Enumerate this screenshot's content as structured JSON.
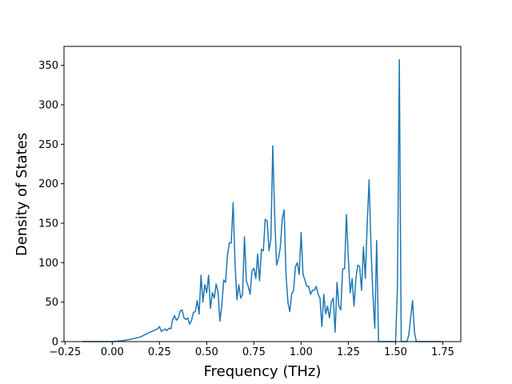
{
  "chart_data": {
    "type": "line",
    "xlabel": "Frequency (THz)",
    "ylabel": "Density of States",
    "x": [
      -0.16,
      0.0,
      0.05,
      0.1,
      0.15,
      0.2,
      0.24,
      0.25,
      0.26,
      0.28,
      0.29,
      0.3,
      0.31,
      0.32,
      0.33,
      0.34,
      0.35,
      0.36,
      0.37,
      0.38,
      0.39,
      0.4,
      0.41,
      0.42,
      0.43,
      0.44,
      0.45,
      0.46,
      0.47,
      0.48,
      0.49,
      0.5,
      0.51,
      0.52,
      0.53,
      0.54,
      0.55,
      0.56,
      0.57,
      0.58,
      0.59,
      0.6,
      0.61,
      0.62,
      0.63,
      0.64,
      0.65,
      0.66,
      0.67,
      0.68,
      0.69,
      0.7,
      0.71,
      0.72,
      0.73,
      0.74,
      0.75,
      0.76,
      0.77,
      0.78,
      0.79,
      0.8,
      0.81,
      0.82,
      0.83,
      0.84,
      0.85,
      0.86,
      0.87,
      0.88,
      0.89,
      0.9,
      0.91,
      0.92,
      0.93,
      0.94,
      0.95,
      0.96,
      0.97,
      0.98,
      0.99,
      1.0,
      1.01,
      1.02,
      1.03,
      1.04,
      1.05,
      1.06,
      1.07,
      1.08,
      1.09,
      1.1,
      1.11,
      1.12,
      1.13,
      1.14,
      1.15,
      1.16,
      1.17,
      1.18,
      1.19,
      1.2,
      1.21,
      1.22,
      1.23,
      1.24,
      1.25,
      1.26,
      1.27,
      1.28,
      1.29,
      1.3,
      1.31,
      1.32,
      1.33,
      1.34,
      1.35,
      1.36,
      1.37,
      1.38,
      1.39,
      1.4,
      1.41,
      1.5,
      1.51,
      1.52,
      1.53,
      1.56,
      1.57,
      1.58,
      1.59,
      1.6,
      1.61,
      1.75
    ],
    "series": [
      {
        "color": "#1f77b4",
        "values": [
          0,
          0,
          1,
          3,
          6,
          12,
          16,
          19,
          13,
          16,
          14,
          17,
          16,
          28,
          33,
          27,
          30,
          39,
          40,
          30,
          28,
          30,
          22,
          27,
          37,
          38,
          52,
          35,
          84,
          50,
          72,
          62,
          84,
          42,
          62,
          55,
          73,
          63,
          26,
          45,
          78,
          75,
          110,
          125,
          125,
          176,
          100,
          53,
          72,
          55,
          60,
          133,
          77,
          70,
          60,
          90,
          93,
          80,
          111,
          77,
          117,
          115,
          155,
          153,
          115,
          130,
          248,
          160,
          97,
          105,
          120,
          155,
          167,
          85,
          50,
          38,
          60,
          65,
          95,
          100,
          85,
          138,
          85,
          78,
          70,
          70,
          60,
          65,
          65,
          70,
          60,
          55,
          19,
          60,
          35,
          45,
          30,
          50,
          55,
          12,
          75,
          45,
          40,
          92,
          92,
          161,
          105,
          62,
          80,
          45,
          80,
          97,
          95,
          65,
          120,
          80,
          150,
          205,
          120,
          60,
          17,
          128,
          0,
          0,
          68,
          357,
          0,
          0,
          8,
          30,
          52,
          12,
          0,
          0
        ]
      }
    ],
    "xlim": [
      -0.2555,
      1.8455
    ],
    "ylim": [
      0,
      374
    ],
    "xticks": [
      {
        "value": -0.25,
        "label": "−0.25"
      },
      {
        "value": 0,
        "label": "0.00"
      },
      0.25,
      {
        "value": 0.5,
        "label": "0.50"
      },
      0.75,
      {
        "value": 1,
        "label": "1.00"
      },
      1.25,
      {
        "value": 1.5,
        "label": "1.50"
      },
      1.75
    ],
    "yticks": [
      0,
      50,
      100,
      150,
      200,
      250,
      300,
      350
    ]
  }
}
